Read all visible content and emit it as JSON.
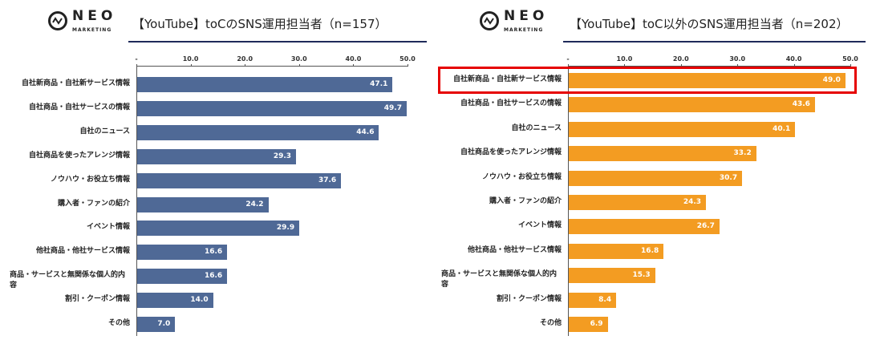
{
  "logo": {
    "name": "NEO",
    "sub": "MARKETING"
  },
  "chart_data": [
    {
      "type": "bar",
      "orientation": "horizontal",
      "title": "【YouTube】toCのSNS運用担当者（n=157）",
      "xlim": [
        0,
        50
      ],
      "tick_labels": [
        "-",
        "10.0",
        "20.0",
        "30.0",
        "40.0",
        "50.0"
      ],
      "color": "#4f6996",
      "categories": [
        "自社新商品・自社新サービス情報",
        "自社商品・自社サービスの情報",
        "自社のニュース",
        "自社商品を使ったアレンジ情報",
        "ノウハウ・お役立ち情報",
        "購入者・ファンの紹介",
        "イベント情報",
        "他社商品・他社サービス情報",
        "商品・サービスと無関係な個人的内容",
        "割引・クーポン情報",
        "その他"
      ],
      "values": [
        47.1,
        49.7,
        44.6,
        29.3,
        37.6,
        24.2,
        29.9,
        16.6,
        16.6,
        14.0,
        7.0
      ],
      "value_labels": [
        "47.1",
        "49.7",
        "44.6",
        "29.3",
        "37.6",
        "24.2",
        "29.9",
        "16.6",
        "16.6",
        "14.0",
        "7.0"
      ],
      "highlight_index": null
    },
    {
      "type": "bar",
      "orientation": "horizontal",
      "title": "【YouTube】toC以外のSNS運用担当者（n=202）",
      "xlim": [
        0,
        50
      ],
      "tick_labels": [
        "-",
        "10.0",
        "20.0",
        "30.0",
        "40.0",
        "50.0"
      ],
      "color": "#f39c22",
      "categories": [
        "自社新商品・自社新サービス情報",
        "自社商品・自社サービスの情報",
        "自社のニュース",
        "自社商品を使ったアレンジ情報",
        "ノウハウ・お役立ち情報",
        "購入者・ファンの紹介",
        "イベント情報",
        "他社商品・他社サービス情報",
        "商品・サービスと無関係な個人的内容",
        "割引・クーポン情報",
        "その他"
      ],
      "values": [
        49.0,
        43.6,
        40.1,
        33.2,
        30.7,
        24.3,
        26.7,
        16.8,
        15.3,
        8.4,
        6.9
      ],
      "value_labels": [
        "49.0",
        "43.6",
        "40.1",
        "33.2",
        "30.7",
        "24.3",
        "26.7",
        "16.8",
        "15.3",
        "8.4",
        "6.9"
      ],
      "highlight_index": 0,
      "highlight_color": "#e60000"
    }
  ]
}
